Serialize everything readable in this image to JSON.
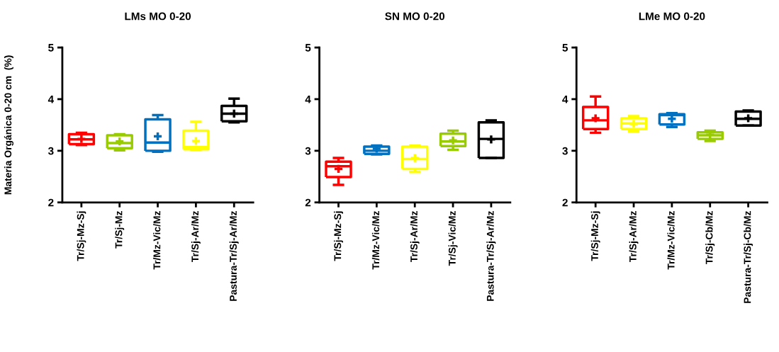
{
  "chart_data": [
    {
      "type": "box",
      "title": "LMs MO 0-20",
      "ylabel": "Materia Orgánica 0-20 cm  (%)",
      "categories": [
        "Tr/Sj-Mz-Sj",
        "Tr/Sj-Mz",
        "Tr/Mz-Vic/Mz",
        "Tr/Sj-Ar/Mz",
        "Pastura-Tr/Sj-Ar/Mz"
      ],
      "colors": [
        "#ff0000",
        "#99cc00",
        "#0070c0",
        "#ffff00",
        "#000000"
      ],
      "ylim": [
        2,
        5
      ],
      "yticks": [
        2,
        3,
        4,
        5
      ],
      "grid": false,
      "marker": "cross",
      "boxes": [
        {
          "low": 3.11,
          "q1": 3.13,
          "median": 3.22,
          "q3": 3.32,
          "high": 3.35,
          "mean": 3.23
        },
        {
          "low": 3.01,
          "q1": 3.05,
          "median": 3.15,
          "q3": 3.3,
          "high": 3.32,
          "mean": 3.18
        },
        {
          "low": 2.98,
          "q1": 3.0,
          "median": 3.16,
          "q3": 3.61,
          "high": 3.69,
          "mean": 3.28
        },
        {
          "low": 3.02,
          "q1": 3.03,
          "median": 3.07,
          "q3": 3.39,
          "high": 3.56,
          "mean": 3.19
        },
        {
          "low": 3.55,
          "q1": 3.57,
          "median": 3.72,
          "q3": 3.87,
          "high": 4.01,
          "mean": 3.72
        }
      ]
    },
    {
      "type": "box",
      "title": "SN MO 0-20",
      "categories": [
        "Tr/Sj-Mz-Sj",
        "Tr/Mz-Vic/Mz",
        "Tr/Sj-Ar/Mz",
        "Tr/Sj-Vic/Mz",
        "Pastura-Tr/Sj-Ar/Mz"
      ],
      "colors": [
        "#ff0000",
        "#0070c0",
        "#ffff00",
        "#99cc00",
        "#000000"
      ],
      "ylim": [
        2,
        5
      ],
      "yticks": [
        2,
        3,
        4,
        5
      ],
      "grid": false,
      "marker": "cross",
      "boxes": [
        {
          "low": 2.34,
          "q1": 2.49,
          "median": 2.7,
          "q3": 2.79,
          "high": 2.86,
          "mean": 2.65
        },
        {
          "low": 2.93,
          "q1": 2.94,
          "median": 3.0,
          "q3": 3.08,
          "high": 3.1,
          "mean": 3.04
        },
        {
          "low": 2.59,
          "q1": 2.65,
          "median": 2.84,
          "q3": 3.08,
          "high": 3.1,
          "mean": 2.86
        },
        {
          "low": 3.02,
          "q1": 3.09,
          "median": 3.18,
          "q3": 3.33,
          "high": 3.39,
          "mean": 3.2
        },
        {
          "low": 2.86,
          "q1": 2.86,
          "median": 3.23,
          "q3": 3.55,
          "high": 3.59,
          "mean": 3.22
        }
      ]
    },
    {
      "type": "box",
      "title": "LMe MO 0-20",
      "categories": [
        "Tr/Sj-Mz-Sj",
        "Tr/Sj-Ar/Mz",
        "Tr/Mz-Vic/Mz",
        "Tr/Sj-Cb/Mz",
        "Pastura-Tr/Sj-Cb/Mz"
      ],
      "colors": [
        "#ff0000",
        "#ffff00",
        "#0070c0",
        "#99cc00",
        "#000000"
      ],
      "ylim": [
        2,
        5
      ],
      "yticks": [
        2,
        3,
        4,
        5
      ],
      "grid": false,
      "marker": "cross",
      "boxes": [
        {
          "low": 3.35,
          "q1": 3.42,
          "median": 3.59,
          "q3": 3.85,
          "high": 4.05,
          "mean": 3.63
        },
        {
          "low": 3.38,
          "q1": 3.42,
          "median": 3.53,
          "q3": 3.63,
          "high": 3.67,
          "mean": 3.52
        },
        {
          "low": 3.46,
          "q1": 3.51,
          "median": 3.69,
          "q3": 3.71,
          "high": 3.73,
          "mean": 3.62
        },
        {
          "low": 3.19,
          "q1": 3.23,
          "median": 3.3,
          "q3": 3.36,
          "high": 3.39,
          "mean": 3.31
        },
        {
          "low": 3.49,
          "q1": 3.49,
          "median": 3.62,
          "q3": 3.76,
          "high": 3.78,
          "mean": 3.63
        }
      ]
    }
  ]
}
